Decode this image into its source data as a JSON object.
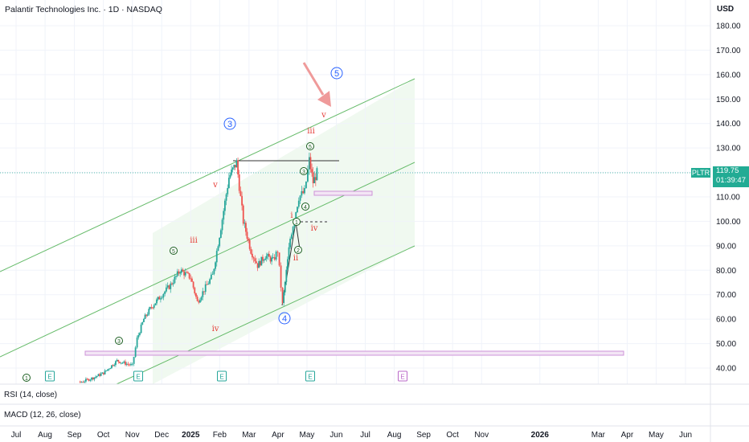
{
  "header": {
    "title": "Palantir Technologies Inc. · 1D · NASDAQ",
    "currency": "USD"
  },
  "panes": {
    "rsi_label": "RSI (14, close)",
    "macd_label": "MACD (12, 26, close)"
  },
  "last_price": {
    "ticker": "PLTR",
    "price": "119.75",
    "countdown": "01:39:47",
    "color": "#22ab94"
  },
  "colors": {
    "up": "#26a69a",
    "down": "#ef5350",
    "channel": "#4caf50",
    "box": "#ce93d8",
    "wave_primary": "#2962ff",
    "wave_minor_green": "#1b5e20",
    "wave_minor_red": "#e53935",
    "arrow": "#ef9a9a"
  },
  "chart_data": {
    "type": "line",
    "title": "Palantir Technologies Inc. · 1D · NASDAQ",
    "y_axis": {
      "unit": "USD",
      "ticks": [
        40,
        50,
        60,
        70,
        80,
        90,
        100,
        110,
        120,
        130,
        140,
        150,
        160,
        170,
        180
      ],
      "range": [
        33,
        187
      ]
    },
    "x_axis": {
      "ticks": [
        "Jul",
        "Aug",
        "Sep",
        "Oct",
        "Nov",
        "Dec",
        "2025",
        "Feb",
        "Mar",
        "Apr",
        "May",
        "Jun",
        "Jul",
        "Aug",
        "Sep",
        "Oct",
        "Nov",
        "2026",
        "Mar",
        "Apr",
        "May",
        "Jun"
      ],
      "tick_positions": [
        2024.5,
        2024.583,
        2024.667,
        2024.75,
        2024.833,
        2024.917,
        2025.0,
        2025.083,
        2025.167,
        2025.25,
        2025.333,
        2025.417,
        2025.5,
        2025.583,
        2025.667,
        2025.75,
        2025.833,
        2026.0,
        2026.167,
        2026.25,
        2026.333,
        2026.417
      ]
    },
    "series": [
      {
        "x": [
          "2024-08-05",
          "2024-08-20",
          "2024-09-05",
          "2024-09-20",
          "2024-10-01",
          "2024-10-15",
          "2024-10-31",
          "2024-11-05",
          "2024-11-12",
          "2024-11-20",
          "2024-12-01",
          "2024-12-10",
          "2024-12-20",
          "2024-12-31",
          "2025-01-08",
          "2025-01-15",
          "2025-01-24",
          "2025-02-03",
          "2025-02-10",
          "2025-02-18",
          "2025-02-25",
          "2025-03-05",
          "2025-03-12",
          "2025-03-20",
          "2025-03-28",
          "2025-04-02",
          "2025-04-07",
          "2025-04-15",
          "2025-04-24",
          "2025-04-30",
          "2025-05-05",
          "2025-05-09",
          "2025-05-13"
        ],
        "values": [
          28,
          31,
          34,
          36,
          38,
          43,
          41,
          52,
          60,
          65,
          70,
          74,
          80,
          77,
          67,
          72,
          78,
          101,
          118,
          124,
          100,
          88,
          82,
          86,
          84,
          88,
          66,
          93,
          110,
          112,
          125,
          116,
          119.75
        ]
      }
    ],
    "annotations": {
      "primary_waves": [
        "3",
        "4",
        "5"
      ],
      "minor_green": [
        "1",
        "3",
        "5",
        "1",
        "2",
        "3",
        "4",
        "5"
      ],
      "minor_red": [
        "iii",
        "iv",
        "v",
        "i",
        "ii",
        "iii",
        "iv",
        "v"
      ],
      "earnings_markers": [
        "E",
        "E",
        "E",
        "E",
        "E"
      ]
    },
    "grid": true
  }
}
